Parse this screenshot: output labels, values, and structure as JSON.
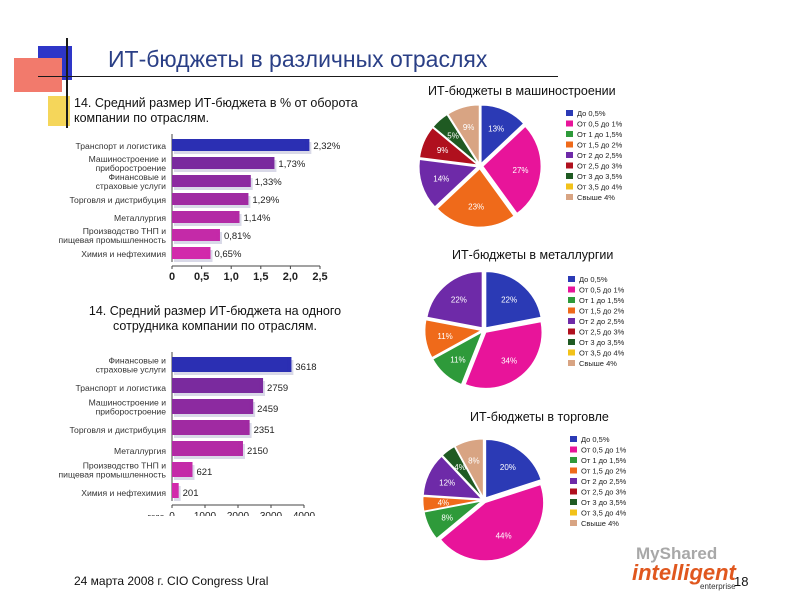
{
  "title": "ИТ-бюджеты в различных отраслях",
  "footer": {
    "date_event": "24 марта 2008 г. CIO Congress Ural",
    "page": "18"
  },
  "logo": {
    "brand1": "MyShared",
    "brand2": "intelligent",
    "brand3": "enterprise"
  },
  "colors": {
    "bar_top": "#2b2fb3",
    "bar_others": [
      "#7a2a9e",
      "#8c2aa0",
      "#a02aa2",
      "#b32aa5",
      "#c42aa8",
      "#d22aab"
    ],
    "pie_legend": [
      "#2b3ab5",
      "#e8149a",
      "#2e9a3a",
      "#ef6a1a",
      "#6e2aa8",
      "#b0101e",
      "#1f5a22",
      "#f2c21a",
      "#d8a483"
    ]
  },
  "chart_data": [
    {
      "type": "bar",
      "orientation": "horizontal",
      "title": "14. Средний размер ИТ-бюджета в % от оборота компании по отраслям.",
      "categories": [
        "Транспорт и логистика",
        "Машиностроение и приборостроение",
        "Финансовые и страховые услуги",
        "Торговля и дистрибуция",
        "Металлургия",
        "Производство ТНП и пищевая промышленность",
        "Химия и нефтехимия"
      ],
      "values": [
        2.32,
        1.73,
        1.33,
        1.29,
        1.14,
        0.81,
        0.65
      ],
      "value_labels": [
        "2,32%",
        "1,73%",
        "1,33%",
        "1,29%",
        "1,14%",
        "0,81%",
        "0,65%"
      ],
      "xlim": [
        0,
        2.5
      ],
      "xticks": [
        "0",
        "0,5",
        "1,0",
        "1,5",
        "2,0",
        "2,5"
      ]
    },
    {
      "type": "bar",
      "orientation": "horizontal",
      "title": "14. Средний размер ИТ-бюджета на одного сотрудника компании по отраслям.",
      "categories": [
        "Финансовые и страховые услуги",
        "Транспорт и логистика",
        "Машиностроение и приборостроение",
        "Торговля и дистрибуция",
        "Металлургия",
        "Производство ТНП и пищевая промышленность",
        "Химия и нефтехимия"
      ],
      "values": [
        3618,
        2759,
        2459,
        2351,
        2150,
        621,
        201
      ],
      "value_labels": [
        "3618",
        "2759",
        "2459",
        "2351",
        "2150",
        "621",
        "201"
      ],
      "xlim": [
        0,
        4000
      ],
      "xticks": [
        "0",
        "1000",
        "2000",
        "3000",
        "4000"
      ],
      "xunit": "долл."
    },
    {
      "type": "pie",
      "title": "ИТ-бюджеты в машиностроении",
      "legend": [
        "До 0,5%",
        "От 0,5 до 1%",
        "От 1 до 1,5%",
        "От 1,5 до 2%",
        "От 2 до 2,5%",
        "От 2,5 до 3%",
        "От 3 до 3,5%",
        "От 3,5 до 4%",
        "Свыше 4%"
      ],
      "slices": [
        {
          "label": "13%",
          "value": 13,
          "color": "#2b3ab5"
        },
        {
          "label": "27%",
          "value": 27,
          "color": "#e8149a"
        },
        {
          "label": "23%",
          "value": 23,
          "color": "#ef6a1a"
        },
        {
          "label": "14%",
          "value": 14,
          "color": "#6e2aa8"
        },
        {
          "label": "9%",
          "value": 9,
          "color": "#b0101e"
        },
        {
          "label": "5%",
          "value": 5,
          "color": "#1f5a22"
        },
        {
          "label": "9%",
          "value": 9,
          "color": "#d8a483"
        }
      ]
    },
    {
      "type": "pie",
      "title": "ИТ-бюджеты в металлургии",
      "legend": [
        "До 0,5%",
        "От 0,5 до 1%",
        "От 1 до 1,5%",
        "От 1,5 до 2%",
        "От 2 до 2,5%",
        "От 2,5 до 3%",
        "От 3 до 3,5%",
        "От 3,5 до 4%",
        "Свыше 4%"
      ],
      "slices": [
        {
          "label": "22%",
          "value": 22,
          "color": "#2b3ab5"
        },
        {
          "label": "34%",
          "value": 34,
          "color": "#e8149a"
        },
        {
          "label": "11%",
          "value": 11,
          "color": "#2e9a3a"
        },
        {
          "label": "11%",
          "value": 11,
          "color": "#ef6a1a"
        },
        {
          "label": "22%",
          "value": 22,
          "color": "#6e2aa8"
        }
      ]
    },
    {
      "type": "pie",
      "title": "ИТ-бюджеты в торговле",
      "legend": [
        "До 0,5%",
        "От 0,5 до 1%",
        "От 1 до 1,5%",
        "От 1,5 до 2%",
        "От 2 до 2,5%",
        "От 2,5 до 3%",
        "От 3 до 3,5%",
        "От 3,5 до 4%",
        "Свыше 4%"
      ],
      "slices": [
        {
          "label": "20%",
          "value": 20,
          "color": "#2b3ab5"
        },
        {
          "label": "44%",
          "value": 44,
          "color": "#e8149a"
        },
        {
          "label": "8%",
          "value": 8,
          "color": "#2e9a3a"
        },
        {
          "label": "4%",
          "value": 4,
          "color": "#ef6a1a"
        },
        {
          "label": "12%",
          "value": 12,
          "color": "#6e2aa8"
        },
        {
          "label": "4%",
          "value": 4,
          "color": "#1f5a22"
        },
        {
          "label": "8%",
          "value": 8,
          "color": "#d8a483"
        }
      ]
    }
  ]
}
